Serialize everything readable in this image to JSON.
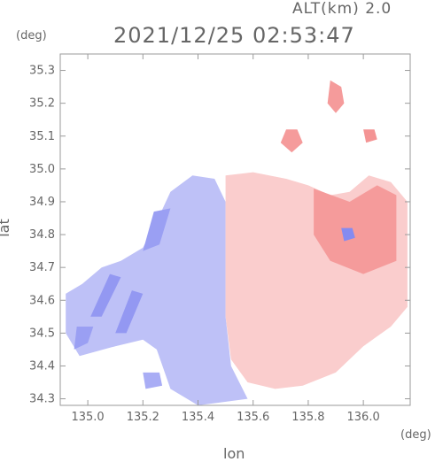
{
  "header": {
    "alt_label": "ALT(km) 2.0",
    "timestamp": "2021/12/25 02:53:47"
  },
  "chart_data": {
    "type": "heatmap",
    "title": "2021/12/25 02:53:47",
    "subtitle": "ALT(km) 2.0",
    "xlabel": "lon",
    "ylabel": "lat",
    "x_unit": "(deg)",
    "y_unit": "(deg)",
    "xlim": [
      134.9,
      136.17
    ],
    "ylim": [
      34.28,
      35.35
    ],
    "x_ticks": [
      135.0,
      135.2,
      135.4,
      135.6,
      135.8,
      136.0
    ],
    "x_tick_labels": [
      "135.0",
      "135.2",
      "135.4",
      "135.6",
      "135.8",
      "136.0"
    ],
    "y_ticks": [
      34.3,
      34.4,
      34.5,
      34.6,
      34.7,
      34.8,
      34.9,
      35.0,
      35.1,
      35.2,
      35.3
    ],
    "y_tick_labels": [
      "34.3",
      "34.4",
      "34.5",
      "34.6",
      "34.7",
      "34.8",
      "34.9",
      "35.0",
      "35.1",
      "35.2",
      "35.3"
    ],
    "grid": false,
    "colormap": {
      "negative": "#6f76ee",
      "neutral": "#ffffff",
      "positive": "#f07070"
    },
    "regions": [
      {
        "sign": "negative",
        "intensity": 0.45,
        "polygon": [
          [
            134.92,
            34.62
          ],
          [
            134.98,
            34.65
          ],
          [
            135.05,
            34.7
          ],
          [
            135.12,
            34.72
          ],
          [
            135.2,
            34.76
          ],
          [
            135.25,
            34.84
          ],
          [
            135.3,
            34.93
          ],
          [
            135.38,
            34.98
          ],
          [
            135.46,
            34.97
          ],
          [
            135.5,
            34.9
          ],
          [
            135.5,
            34.55
          ],
          [
            135.52,
            34.4
          ],
          [
            135.58,
            34.3
          ],
          [
            135.4,
            34.28
          ],
          [
            135.3,
            34.33
          ],
          [
            135.25,
            34.45
          ],
          [
            135.2,
            34.48
          ],
          [
            135.1,
            34.46
          ],
          [
            134.97,
            34.43
          ],
          [
            134.92,
            34.5
          ]
        ]
      },
      {
        "sign": "negative",
        "intensity": 0.75,
        "polygon": [
          [
            135.01,
            34.55
          ],
          [
            135.05,
            34.55
          ],
          [
            135.12,
            34.67
          ],
          [
            135.08,
            34.68
          ]
        ]
      },
      {
        "sign": "negative",
        "intensity": 0.75,
        "polygon": [
          [
            135.1,
            34.5
          ],
          [
            135.14,
            34.5
          ],
          [
            135.2,
            34.62
          ],
          [
            135.16,
            34.63
          ]
        ]
      },
      {
        "sign": "negative",
        "intensity": 0.7,
        "polygon": [
          [
            135.2,
            34.75
          ],
          [
            135.26,
            34.77
          ],
          [
            135.3,
            34.88
          ],
          [
            135.24,
            34.87
          ]
        ]
      },
      {
        "sign": "negative",
        "intensity": 0.7,
        "polygon": [
          [
            134.95,
            34.45
          ],
          [
            135.0,
            34.47
          ],
          [
            135.02,
            34.52
          ],
          [
            134.96,
            34.52
          ]
        ]
      },
      {
        "sign": "positive",
        "intensity": 0.35,
        "polygon": [
          [
            135.5,
            34.98
          ],
          [
            135.6,
            34.99
          ],
          [
            135.72,
            34.97
          ],
          [
            135.8,
            34.95
          ],
          [
            135.88,
            34.92
          ],
          [
            135.95,
            34.93
          ],
          [
            136.02,
            34.98
          ],
          [
            136.1,
            34.96
          ],
          [
            136.16,
            34.9
          ],
          [
            136.16,
            34.58
          ],
          [
            136.1,
            34.52
          ],
          [
            136.0,
            34.46
          ],
          [
            135.9,
            34.38
          ],
          [
            135.78,
            34.34
          ],
          [
            135.68,
            34.33
          ],
          [
            135.58,
            34.35
          ],
          [
            135.52,
            34.42
          ],
          [
            135.5,
            34.55
          ]
        ]
      },
      {
        "sign": "positive",
        "intensity": 0.7,
        "polygon": [
          [
            135.82,
            34.94
          ],
          [
            135.95,
            34.9
          ],
          [
            136.05,
            34.95
          ],
          [
            136.12,
            34.92
          ],
          [
            136.12,
            34.72
          ],
          [
            136.0,
            34.68
          ],
          [
            135.88,
            34.72
          ],
          [
            135.82,
            34.8
          ]
        ]
      },
      {
        "sign": "positive",
        "intensity": 0.7,
        "polygon": [
          [
            135.88,
            35.27
          ],
          [
            135.92,
            35.25
          ],
          [
            135.93,
            35.2
          ],
          [
            135.9,
            35.17
          ],
          [
            135.87,
            35.2
          ]
        ]
      },
      {
        "sign": "positive",
        "intensity": 0.7,
        "polygon": [
          [
            135.72,
            35.12
          ],
          [
            135.76,
            35.12
          ],
          [
            135.78,
            35.08
          ],
          [
            135.74,
            35.05
          ],
          [
            135.7,
            35.08
          ]
        ]
      },
      {
        "sign": "positive",
        "intensity": 0.75,
        "polygon": [
          [
            136.0,
            35.12
          ],
          [
            136.04,
            35.12
          ],
          [
            136.05,
            35.09
          ],
          [
            136.01,
            35.08
          ]
        ]
      },
      {
        "sign": "negative",
        "intensity": 0.85,
        "polygon": [
          [
            135.92,
            34.82
          ],
          [
            135.96,
            34.82
          ],
          [
            135.97,
            34.79
          ],
          [
            135.93,
            34.78
          ]
        ]
      },
      {
        "sign": "negative",
        "intensity": 0.6,
        "polygon": [
          [
            135.2,
            34.38
          ],
          [
            135.26,
            34.38
          ],
          [
            135.27,
            34.34
          ],
          [
            135.21,
            34.33
          ]
        ]
      }
    ]
  }
}
